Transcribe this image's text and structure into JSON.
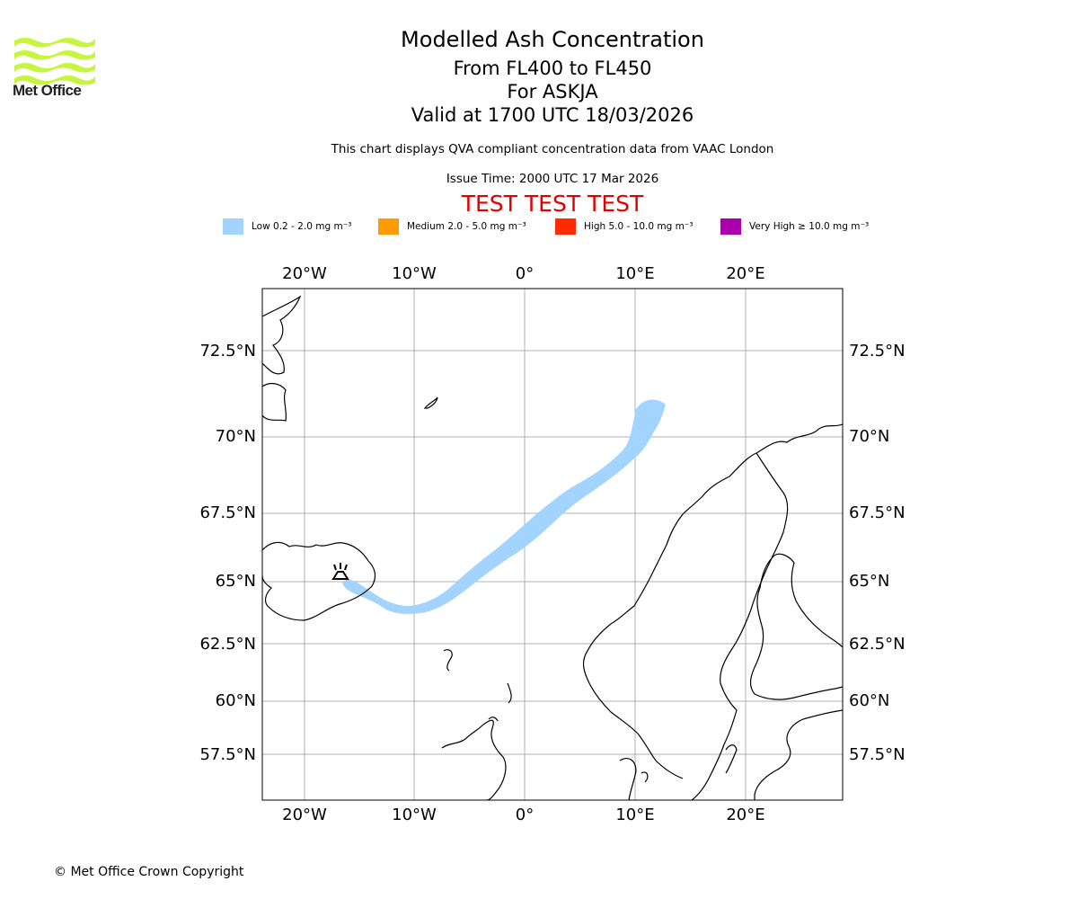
{
  "header": {
    "logo_text": "Met Office",
    "title": "Modelled Ash Concentration",
    "flight_levels": "From FL400 to FL450",
    "volcano_line": "For ASKJA",
    "valid_line": "Valid at 1700 UTC 18/03/2026",
    "compliance_note": "This chart displays QVA compliant concentration data from VAAC London",
    "issue_time": "Issue Time: 2000 UTC 17 Mar 2026",
    "test_banner": "TEST TEST TEST"
  },
  "legend": [
    {
      "label": "Low 0.2 - 2.0 mg m⁻³",
      "color": "#a3d4ff"
    },
    {
      "label": "Medium 2.0 - 5.0 mg m⁻³",
      "color": "#ff9a00"
    },
    {
      "label": "High 5.0 - 10.0 mg m⁻³",
      "color": "#ff2a00"
    },
    {
      "label": "Very High  ≥  10.0 mg m⁻³",
      "color": "#aa00aa"
    }
  ],
  "map": {
    "lon_labels": [
      "20°W",
      "10°W",
      "0°",
      "10°E",
      "20°E"
    ],
    "lat_labels": [
      "72.5°N",
      "70°N",
      "67.5°N",
      "65°N",
      "62.5°N",
      "60°N",
      "57.5°N"
    ],
    "volcano_name": "ASKJA",
    "ash_cloud_level": "Low"
  },
  "footer": {
    "copyright": "© Met Office Crown Copyright"
  }
}
